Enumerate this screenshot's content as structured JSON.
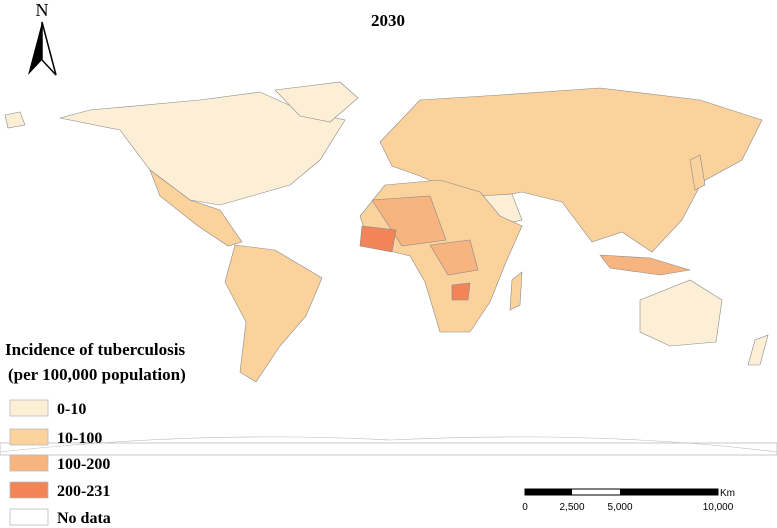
{
  "title": "2030",
  "north": "N",
  "legend": {
    "title": [
      "Incidence of tuberculosis",
      "(per 100,000 population)"
    ],
    "items": [
      {
        "label": "0-10",
        "color": "#fdefd6"
      },
      {
        "label": "10-100",
        "color": "#fbd29c"
      },
      {
        "label": "100-200",
        "color": "#f7b47e"
      },
      {
        "label": "200-231",
        "color": "#f18558"
      },
      {
        "label": "No data",
        "color": "#ffffff"
      }
    ]
  },
  "scale_bar": {
    "labels": [
      "0",
      "2,500",
      "5,000",
      "10,000"
    ],
    "unit": "Km"
  }
}
